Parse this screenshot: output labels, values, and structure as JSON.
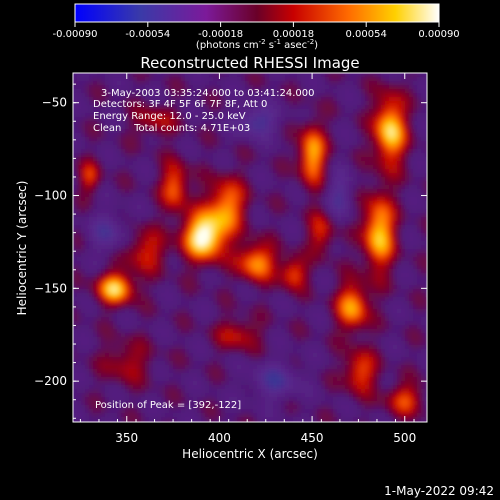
{
  "chart_data": {
    "type": "heatmap",
    "title": "Reconstructed RHESSI Image",
    "xlabel": "Heliocentric X (arcsec)",
    "ylabel": "Heliocentric Y (arcsec)",
    "xlim": [
      321,
      512
    ],
    "ylim": [
      -222,
      -34
    ],
    "x_ticks": [
      350,
      400,
      450,
      500
    ],
    "y_ticks": [
      -50,
      -100,
      -150,
      -200
    ],
    "x_tick_labels": [
      "350",
      "400",
      "450",
      "500"
    ],
    "y_tick_labels": [
      "−50",
      "−100",
      "−150",
      "−200"
    ],
    "colorbar": {
      "range": [
        -0.0009,
        0.0009
      ],
      "ticks": [
        -0.0009,
        -0.00054,
        -0.00018,
        0.00018,
        0.00054,
        0.0009
      ],
      "tick_labels": [
        "-0.00090",
        "-0.00054",
        "-0.00018",
        "0.00018",
        "0.00054",
        "0.00090"
      ],
      "unit_prefix": "(photons cm",
      "unit_exp1": "-2",
      "unit_mid1": " s",
      "unit_exp2": "-1",
      "unit_mid2": " asec",
      "unit_exp3": "-2",
      "unit_suffix": ")"
    },
    "annotations": [
      "3-May-2003 03:35:24.000 to 03:41:24.000",
      "Detectors: 3F 4F 5F 6F 7F 8F, Att 0",
      "Energy Range: 12.0 - 25.0 keV",
      "Clean    Total counts: 4.71E+03"
    ],
    "peak_label": "Position of Peak = [392,-122]",
    "peak": [
      392,
      -122
    ],
    "sources": [
      {
        "x": 392,
        "y": -122,
        "sx": 8,
        "sy": 9,
        "amp": 0.00095
      },
      {
        "x": 404,
        "y": -105,
        "sx": 7,
        "sy": 10,
        "amp": 0.0006
      },
      {
        "x": 376,
        "y": -95,
        "sx": 5,
        "sy": 9,
        "amp": 0.00055
      },
      {
        "x": 344,
        "y": -150,
        "sx": 7,
        "sy": 6,
        "amp": 0.00075
      },
      {
        "x": 330,
        "y": -90,
        "sx": 4,
        "sy": 6,
        "amp": 0.0004
      },
      {
        "x": 420,
        "y": -136,
        "sx": 7,
        "sy": 7,
        "amp": 0.00065
      },
      {
        "x": 450,
        "y": -78,
        "sx": 5,
        "sy": 11,
        "amp": 0.0007
      },
      {
        "x": 440,
        "y": -142,
        "sx": 5,
        "sy": 6,
        "amp": 0.0005
      },
      {
        "x": 455,
        "y": -120,
        "sx": 5,
        "sy": 8,
        "amp": 0.0004
      },
      {
        "x": 492,
        "y": -65,
        "sx": 6,
        "sy": 13,
        "amp": 0.0008
      },
      {
        "x": 486,
        "y": -120,
        "sx": 6,
        "sy": 14,
        "amp": 0.00075
      },
      {
        "x": 472,
        "y": -160,
        "sx": 6,
        "sy": 9,
        "amp": 0.00065
      },
      {
        "x": 476,
        "y": -195,
        "sx": 6,
        "sy": 8,
        "amp": 0.0005
      },
      {
        "x": 360,
        "y": -130,
        "sx": 8,
        "sy": 8,
        "amp": 0.0004
      },
      {
        "x": 410,
        "y": -175,
        "sx": 8,
        "sy": 6,
        "amp": 0.00035
      },
      {
        "x": 500,
        "y": -210,
        "sx": 7,
        "sy": 6,
        "amp": 0.00045
      },
      {
        "x": 350,
        "y": -190,
        "sx": 9,
        "sy": 8,
        "amp": 0.0003
      },
      {
        "x": 365,
        "y": -60,
        "sx": 8,
        "sy": 6,
        "amp": 0.0003
      },
      {
        "x": 420,
        "y": -60,
        "sx": 8,
        "sy": 6,
        "amp": -0.00045
      },
      {
        "x": 340,
        "y": -120,
        "sx": 7,
        "sy": 8,
        "amp": -0.00035
      },
      {
        "x": 430,
        "y": -200,
        "sx": 9,
        "sy": 7,
        "amp": -0.0004
      },
      {
        "x": 465,
        "y": -100,
        "sx": 5,
        "sy": 9,
        "amp": -0.00035
      }
    ]
  },
  "footer": {
    "timestamp": "1-May-2022 09:42"
  }
}
